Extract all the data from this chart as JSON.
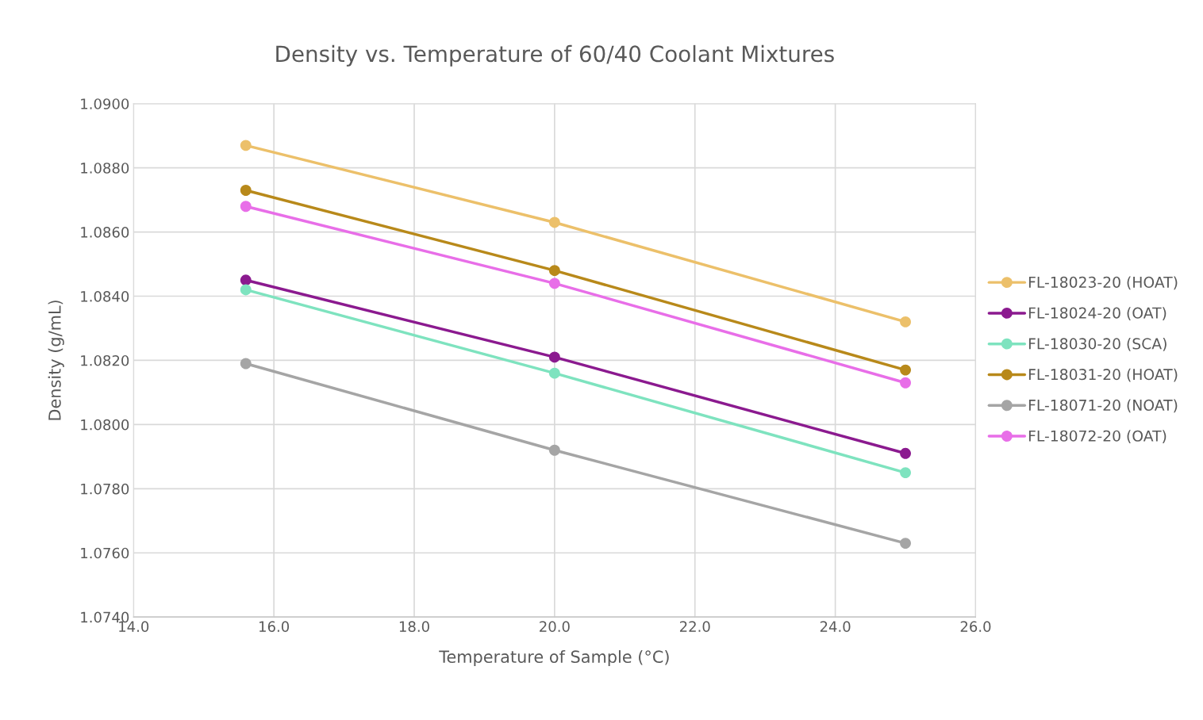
{
  "chart_data": {
    "type": "line",
    "title": "Density vs. Temperature of 60/40 Coolant Mixtures",
    "xlabel": "Temperature of Sample (°C)",
    "ylabel": "Density (g/mL)",
    "x": [
      15.6,
      20.0,
      25.0
    ],
    "series": [
      {
        "name": "FL-18023-20 (HOAT)",
        "color": "#ecc06a",
        "values": [
          1.0887,
          1.0863,
          1.0832
        ]
      },
      {
        "name": "FL-18024-20 (OAT)",
        "color": "#8b1a8f",
        "values": [
          1.0845,
          1.0821,
          1.0791
        ]
      },
      {
        "name": "FL-18030-20 (SCA)",
        "color": "#7ee3bf",
        "values": [
          1.0842,
          1.0816,
          1.0785
        ]
      },
      {
        "name": "FL-18031-20 (HOAT)",
        "color": "#b8891a",
        "values": [
          1.0873,
          1.0848,
          1.0817
        ]
      },
      {
        "name": "FL-18071-20 (NOAT)",
        "color": "#a5a5a5",
        "values": [
          1.0819,
          1.0792,
          1.0763
        ]
      },
      {
        "name": "FL-18072-20 (OAT)",
        "color": "#e86ee8",
        "values": [
          1.0868,
          1.0844,
          1.0813
        ]
      }
    ],
    "xlim": [
      14.0,
      26.0
    ],
    "xticks": [
      {
        "value": 14,
        "label": "14.0"
      },
      {
        "value": 16,
        "label": "16.0"
      },
      {
        "value": 18,
        "label": "18.0"
      },
      {
        "value": 20,
        "label": "20.0"
      },
      {
        "value": 22,
        "label": "22.0"
      },
      {
        "value": 24,
        "label": "24.0"
      },
      {
        "value": 26,
        "label": "26.0"
      }
    ],
    "ylim": [
      1.074,
      1.09
    ],
    "yticks": [
      {
        "value": 1.074,
        "label": "1.0740"
      },
      {
        "value": 1.076,
        "label": "1.0760"
      },
      {
        "value": 1.078,
        "label": "1.0780"
      },
      {
        "value": 1.08,
        "label": "1.0800"
      },
      {
        "value": 1.082,
        "label": "1.0820"
      },
      {
        "value": 1.084,
        "label": "1.0840"
      },
      {
        "value": 1.086,
        "label": "1.0860"
      },
      {
        "value": 1.088,
        "label": "1.0880"
      },
      {
        "value": 1.09,
        "label": "1.0900"
      }
    ],
    "grid": true,
    "legend": "right",
    "marker": "circle",
    "line_style": "solid"
  }
}
